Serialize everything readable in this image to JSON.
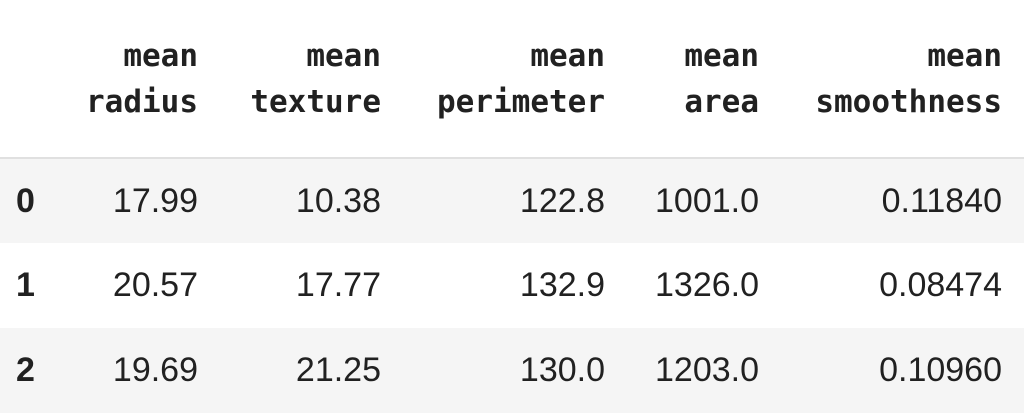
{
  "table": {
    "columns": [
      [
        "mean",
        "radius"
      ],
      [
        "mean",
        "texture"
      ],
      [
        "mean",
        "perimeter"
      ],
      [
        "mean",
        "area"
      ],
      [
        "mean",
        "smoothness"
      ]
    ],
    "rows": [
      {
        "index": "0",
        "values": [
          "17.99",
          "10.38",
          "122.8",
          "1001.0",
          "0.11840"
        ]
      },
      {
        "index": "1",
        "values": [
          "20.57",
          "17.77",
          "132.9",
          "1326.0",
          "0.08474"
        ]
      },
      {
        "index": "2",
        "values": [
          "19.69",
          "21.25",
          "130.0",
          "1203.0",
          "0.10960"
        ]
      }
    ]
  },
  "colors": {
    "text": "#212121",
    "header_border": "#e0e0e0",
    "stripe": "#f5f5f5",
    "background": "#ffffff"
  }
}
